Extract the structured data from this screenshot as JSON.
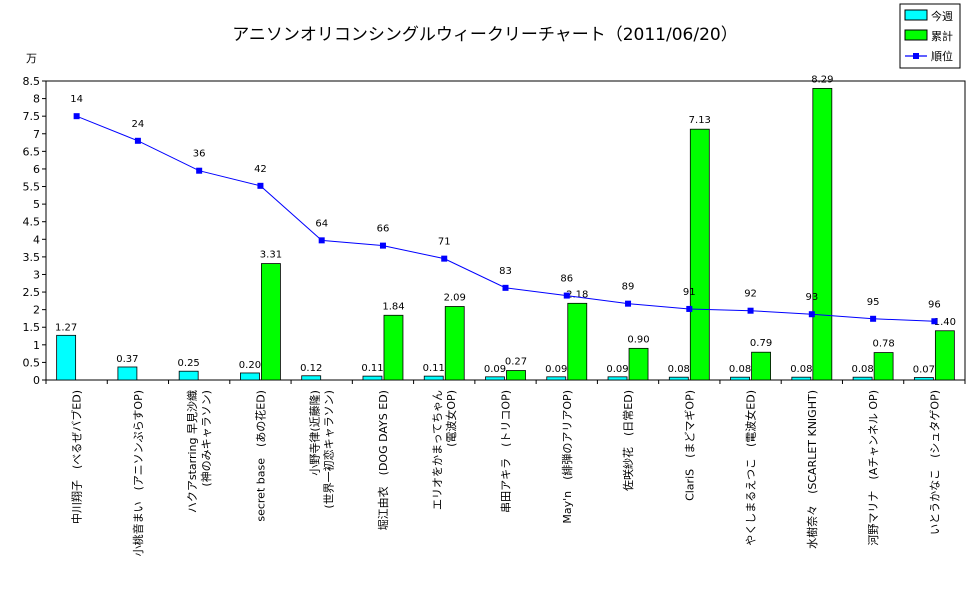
{
  "chart_data": {
    "type": "bar",
    "title": "アニソンオリコンシングルウィークリーチャート（2011/06/20）",
    "ylabel": "万",
    "ylim": [
      0,
      8.5
    ],
    "yticks": [
      "0",
      "0.5",
      "1",
      "1.5",
      "2",
      "2.5",
      "3",
      "3.5",
      "4",
      "4.5",
      "5",
      "5.5",
      "6",
      "6.5",
      "7",
      "7.5",
      "8",
      "8.5"
    ],
    "grid": false,
    "legend_position": "top-right",
    "categories": [
      [
        "中川翔子　(べるぜバブED)"
      ],
      [
        "小桃音まい　(アニソンぷらすOP)"
      ],
      [
        "ハクアstarring 早見沙織",
        "(神のみキャラソン)"
      ],
      [
        "secret base　(あの花ED)"
      ],
      [
        "小野寺律(近藤隆)",
        "(世界一初恋キャラソン)"
      ],
      [
        "堀江由衣　(DOG DAYS ED)"
      ],
      [
        "エリオをかまってちゃん",
        "(電波女OP)"
      ],
      [
        "串田アキラ　(トリコOP)"
      ],
      [
        "May'n　(緋弾のアリアOP)"
      ],
      [
        "佐咲紗花　(日常ED)"
      ],
      [
        "ClariS　(まどマギOP)"
      ],
      [
        "やくしまるえつこ　(電波女ED)"
      ],
      [
        "水樹奈々　(SCARLET KNIGHT)"
      ],
      [
        "河野マリナ　(Aチャンネル OP)"
      ],
      [
        "いとうかなこ　(シュタゲOP)"
      ]
    ],
    "series": [
      {
        "name": "今週",
        "type": "bar",
        "color": "#00ffff",
        "values": [
          1.27,
          0.37,
          0.25,
          0.2,
          0.12,
          0.11,
          0.11,
          0.09,
          0.09,
          0.09,
          0.08,
          0.08,
          0.08,
          0.08,
          0.07
        ],
        "labels": [
          "1.27",
          "0.37",
          "0.25",
          "0.20",
          "0.12",
          "0.11",
          "0.11",
          "0.09",
          "0.09",
          "0.09",
          "0.08",
          "0.08",
          "0.08",
          "0.08",
          "0.07"
        ]
      },
      {
        "name": "累計",
        "type": "bar",
        "color": "#00ff00",
        "values": [
          null,
          null,
          null,
          3.31,
          null,
          1.84,
          2.09,
          0.27,
          2.18,
          0.9,
          7.13,
          0.79,
          8.29,
          0.78,
          1.4
        ],
        "labels": [
          "",
          "",
          "",
          "3.31",
          "",
          "1.84",
          "2.09",
          "0.27",
          "2.18",
          "0.90",
          "7.13",
          "0.79",
          "8.29",
          "0.78",
          "1.40"
        ]
      },
      {
        "name": "順位",
        "type": "line",
        "color": "#0000ff",
        "values": [
          14,
          24,
          36,
          42,
          64,
          66,
          71,
          83,
          86,
          89,
          91,
          92,
          93,
          95,
          96
        ],
        "labels": [
          "14",
          "24",
          "36",
          "42",
          "64",
          "66",
          "71",
          "83",
          "86",
          "89",
          "91",
          "92",
          "93",
          "95",
          "96"
        ]
      }
    ]
  }
}
